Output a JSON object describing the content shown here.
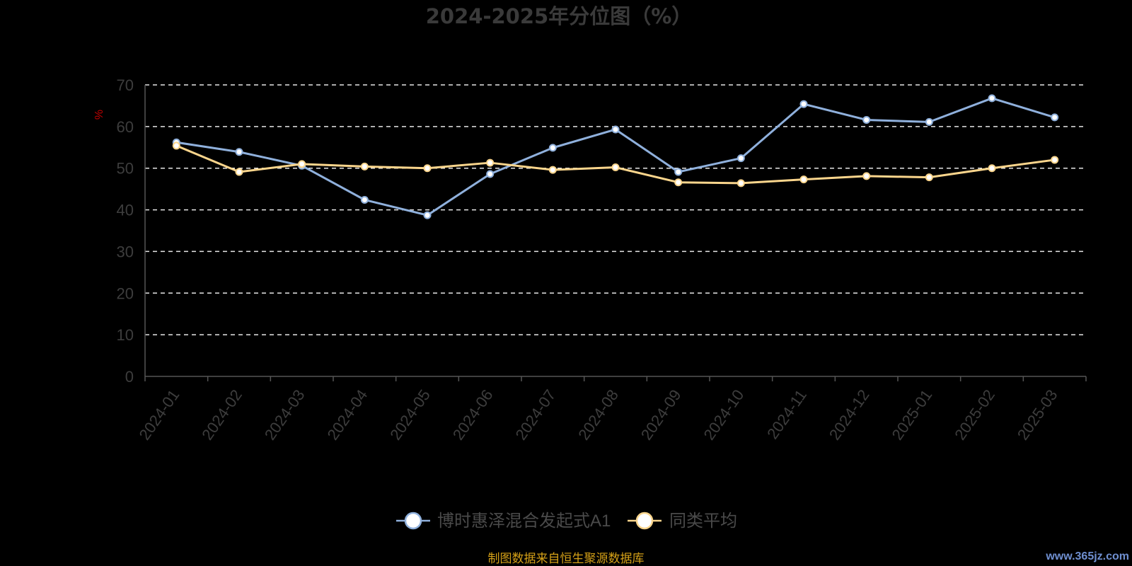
{
  "colors": {
    "background": "#000000",
    "series_1": "#8fb0dc",
    "series_2": "#fad58c",
    "axis": "#555555",
    "grid": "#e6e6e6",
    "ylabel": "#c00000",
    "source": "#d4a017",
    "watermark": "#6f8fd0"
  },
  "footer": {
    "source_text": "制图数据来自恒生聚源数据库",
    "watermark": "www.365jz.com"
  },
  "chart_data": {
    "type": "line",
    "title": "2024-2025年分位图（%）",
    "ylabel": "%",
    "xlabel": "",
    "ylim": [
      0,
      70
    ],
    "yticks": [
      0,
      10,
      20,
      30,
      40,
      50,
      60,
      70
    ],
    "grid": true,
    "legend_position": "bottom-center",
    "categories": [
      "2024-01",
      "2024-02",
      "2024-03",
      "2024-04",
      "2024-05",
      "2024-06",
      "2024-07",
      "2024-08",
      "2024-09",
      "2024-10",
      "2024-11",
      "2024-12",
      "2025-01",
      "2025-02",
      "2025-03"
    ],
    "series": [
      {
        "name": "博时惠泽混合发起式A1",
        "color": "#8fb0dc",
        "values": [
          56.2,
          53.9,
          50.6,
          42.4,
          38.7,
          48.6,
          54.9,
          59.3,
          49.1,
          52.4,
          65.4,
          61.6,
          61.1,
          66.8,
          62.2
        ]
      },
      {
        "name": "同类平均",
        "color": "#fad58c",
        "values": [
          55.4,
          49.1,
          51.0,
          50.4,
          50.0,
          51.3,
          49.6,
          50.2,
          46.6,
          46.4,
          47.3,
          48.1,
          47.8,
          50.0,
          52.0
        ]
      }
    ]
  }
}
